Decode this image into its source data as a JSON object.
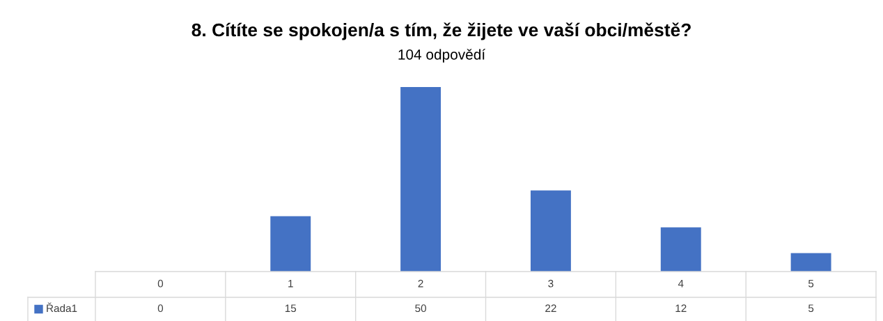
{
  "chart_data": {
    "type": "bar",
    "title": "8. Cítíte se spokojen/a s tím, že žijete ve vaší obci/městě?",
    "subtitle": "104 odpovědí",
    "categories": [
      "0",
      "1",
      "2",
      "3",
      "4",
      "5"
    ],
    "series": [
      {
        "name": "Řada1",
        "color": "#4472c4",
        "values": [
          0,
          15,
          50,
          22,
          12,
          5
        ]
      }
    ],
    "data_labels": true,
    "legend": "bottom"
  }
}
